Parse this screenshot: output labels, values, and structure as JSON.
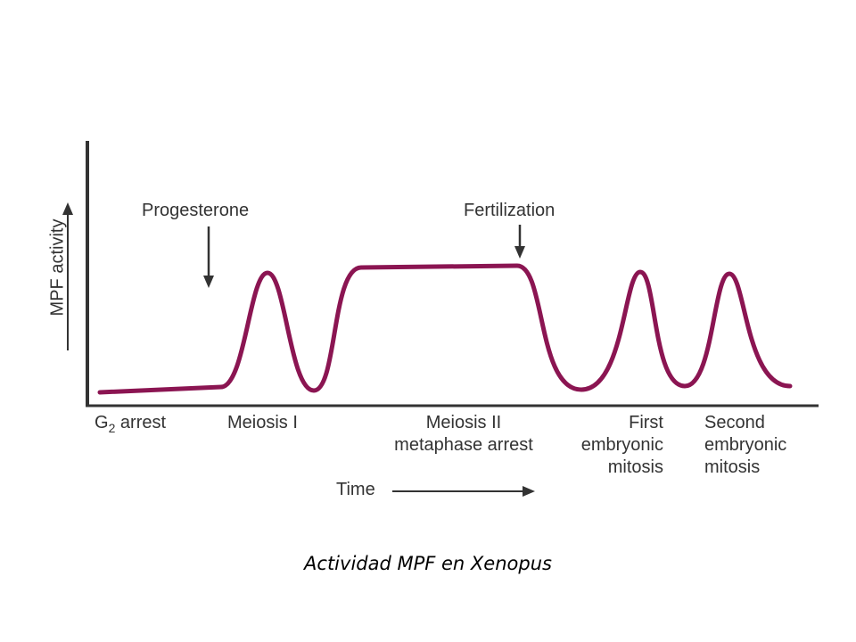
{
  "diagram": {
    "y_axis_label": "MPF activity",
    "x_axis_label": "Time",
    "annotations": {
      "progesterone": "Progesterone",
      "fertilization": "Fertilization"
    },
    "phases": {
      "g2": {
        "base": "G",
        "sub": "2",
        "rest": " arrest"
      },
      "meiosis1": [
        "Meiosis I"
      ],
      "meiosis2": [
        "Meiosis II",
        "metaphase arrest"
      ],
      "first_mitosis": [
        "First",
        "embryonic",
        "mitosis"
      ],
      "second_mitosis": [
        "Second",
        "embryonic",
        "mitosis"
      ]
    },
    "curve_color": "#8b1552",
    "axis_color": "#333333"
  },
  "caption": "Actividad MPF en Xenopus"
}
